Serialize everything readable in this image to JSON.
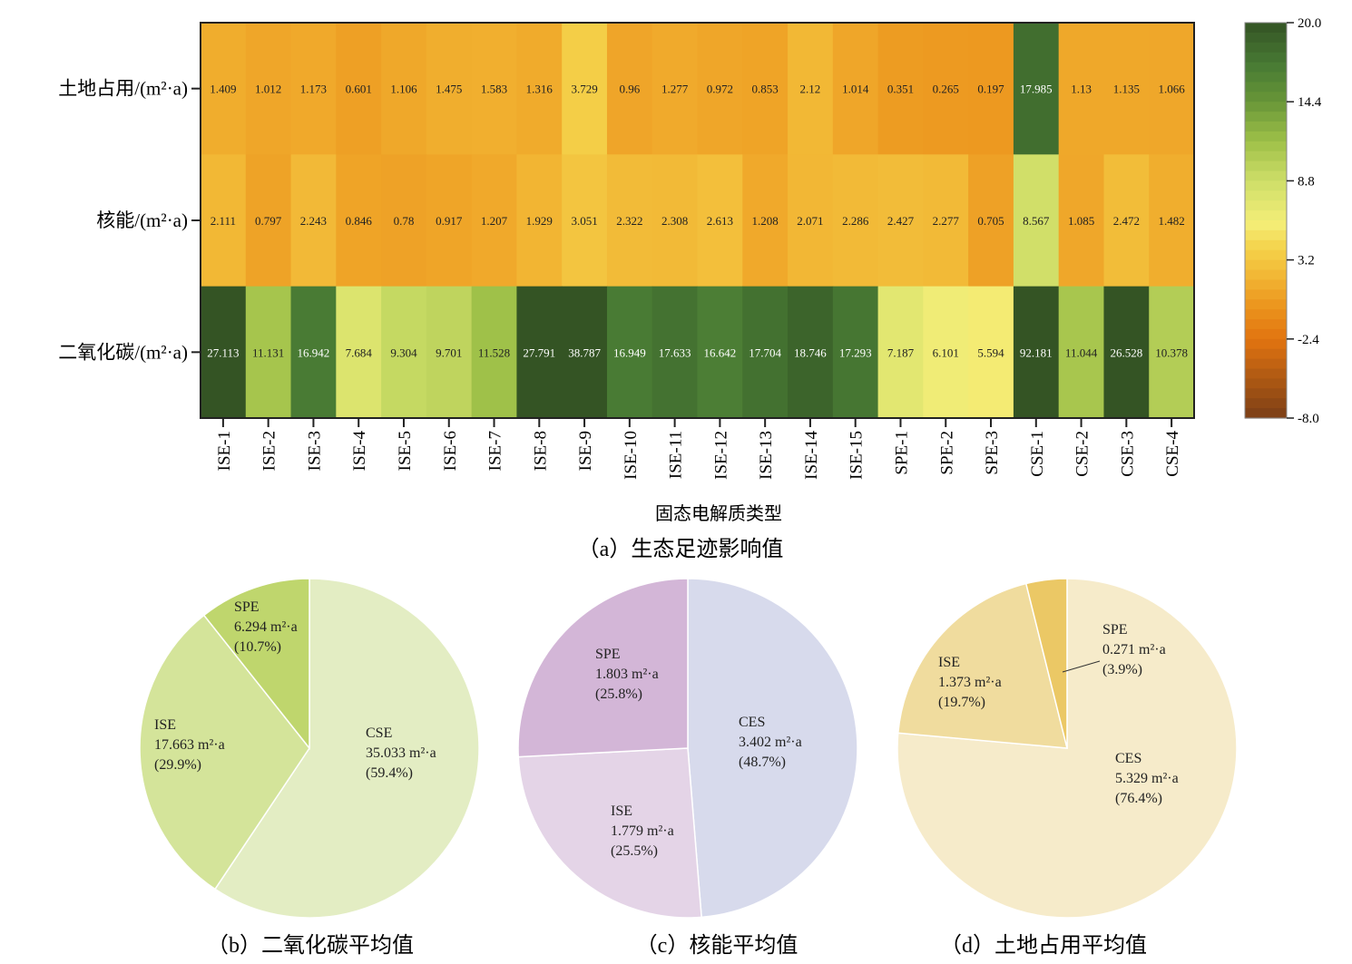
{
  "chart_data": [
    {
      "type": "heatmap",
      "caption": "（a）生态足迹影响值",
      "xlabel": "固态电解质类型",
      "x_categories": [
        "ISE-1",
        "ISE-2",
        "ISE-3",
        "ISE-4",
        "ISE-5",
        "ISE-6",
        "ISE-7",
        "ISE-8",
        "ISE-9",
        "ISE-10",
        "ISE-11",
        "ISE-12",
        "ISE-13",
        "ISE-14",
        "ISE-15",
        "SPE-1",
        "SPE-2",
        "SPE-3",
        "CSE-1",
        "CSE-2",
        "CSE-3",
        "CSE-4"
      ],
      "rows": [
        {
          "label": "土地占用/(m²·a)",
          "values": [
            1.409,
            1.012,
            1.173,
            0.601,
            1.106,
            1.475,
            1.583,
            1.316,
            3.729,
            0.96,
            1.277,
            0.972,
            0.853,
            2.12,
            1.014,
            0.351,
            0.265,
            0.197,
            17.985,
            1.13,
            1.135,
            1.066
          ]
        },
        {
          "label": "核能/(m²·a)",
          "values": [
            2.111,
            0.797,
            2.243,
            0.846,
            0.78,
            0.917,
            1.207,
            1.929,
            3.051,
            2.322,
            2.308,
            2.613,
            1.208,
            2.071,
            2.286,
            2.427,
            2.277,
            0.705,
            8.567,
            1.085,
            2.472,
            1.482
          ]
        },
        {
          "label": "二氧化碳/(m²·a)",
          "values": [
            27.113,
            11.131,
            16.942,
            7.684,
            9.304,
            9.701,
            11.528,
            27.791,
            38.787,
            16.949,
            17.633,
            16.642,
            17.704,
            18.746,
            17.293,
            7.187,
            6.101,
            5.594,
            92.181,
            11.044,
            26.528,
            10.378
          ]
        }
      ],
      "colorbar": {
        "min": -8.0,
        "max": 20.0,
        "ticks": [
          "20.0",
          "14.4",
          "8.8",
          "3.2",
          "-2.4",
          "-8.0"
        ]
      }
    },
    {
      "type": "pie",
      "caption": "（b）二氧化碳平均值",
      "slices": [
        {
          "name": "CSE",
          "value": 35.033,
          "value_label": "35.033 m²·a",
          "percent_label": "(59.4%)",
          "color": "#e3edc3"
        },
        {
          "name": "ISE",
          "value": 17.663,
          "value_label": "17.663 m²·a",
          "percent_label": "(29.9%)",
          "color": "#d4e49a"
        },
        {
          "name": "SPE",
          "value": 6.294,
          "value_label": "6.294 m²·a",
          "percent_label": "(10.7%)",
          "color": "#bfd66d"
        }
      ]
    },
    {
      "type": "pie",
      "caption": "（c）核能平均值",
      "slices": [
        {
          "name": "CES",
          "value": 3.402,
          "value_label": "3.402 m²·a",
          "percent_label": "(48.7%)",
          "color": "#d7daec"
        },
        {
          "name": "ISE",
          "value": 1.779,
          "value_label": "1.779 m²·a",
          "percent_label": "(25.5%)",
          "color": "#e4d4e7"
        },
        {
          "name": "SPE",
          "value": 1.803,
          "value_label": "1.803 m²·a",
          "percent_label": "(25.8%)",
          "color": "#d3b6d7"
        }
      ]
    },
    {
      "type": "pie",
      "caption": "（d）土地占用平均值",
      "slices": [
        {
          "name": "CES",
          "value": 5.329,
          "value_label": "5.329 m²·a",
          "percent_label": "(76.4%)",
          "color": "#f6ebca"
        },
        {
          "name": "ISE",
          "value": 1.373,
          "value_label": "1.373 m²·a",
          "percent_label": "(19.7%)",
          "color": "#f0dc9e"
        },
        {
          "name": "SPE",
          "value": 0.271,
          "value_label": "0.271 m²·a",
          "percent_label": "(3.9%)",
          "color": "#ebc865"
        }
      ]
    }
  ]
}
